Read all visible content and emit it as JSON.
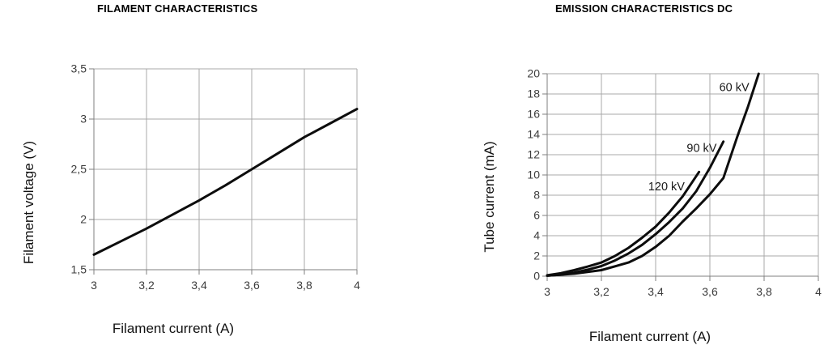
{
  "colors": {
    "background": "#ffffff",
    "curve": "#0d0d0d",
    "grid": "#a8a8a8",
    "axis": "#7f7f7f",
    "tick_text": "#3c3c3c",
    "title_text": "#000000"
  },
  "chart_data": [
    {
      "type": "line",
      "title": "FILAMENT CHARACTERISTICS",
      "xlabel": "Filament current (A)",
      "ylabel": "Filament voltage (V)",
      "xlim": [
        3,
        4
      ],
      "ylim": [
        1.5,
        3.5
      ],
      "grid": true,
      "legend": "none",
      "x_ticks": {
        "values": [
          3,
          3.2,
          3.4,
          3.6,
          3.8,
          4
        ],
        "labels": [
          "3",
          "3,2",
          "3,4",
          "3,6",
          "3,8",
          "4"
        ]
      },
      "y_ticks": {
        "values": [
          1.5,
          2,
          2.5,
          3,
          3.5
        ],
        "labels": [
          "1,5",
          "2",
          "2,5",
          "3",
          "3,5"
        ]
      },
      "series": [
        {
          "name": "filament-voltage",
          "label": null,
          "points": [
            [
              3,
              1.65
            ],
            [
              3.1,
              1.78
            ],
            [
              3.2,
              1.91
            ],
            [
              3.3,
              2.05
            ],
            [
              3.4,
              2.19
            ],
            [
              3.5,
              2.34
            ],
            [
              3.6,
              2.5
            ],
            [
              3.7,
              2.66
            ],
            [
              3.8,
              2.82
            ],
            [
              3.9,
              2.96
            ],
            [
              4,
              3.1
            ]
          ]
        }
      ]
    },
    {
      "type": "line",
      "title": "EMISSION CHARACTERISTICS DC",
      "xlabel": "Filament current (A)",
      "ylabel": "Tube current (mA)",
      "xlim": [
        3,
        4
      ],
      "ylim": [
        0,
        20
      ],
      "grid": true,
      "legend": "inline-annotations",
      "x_ticks": {
        "values": [
          3,
          3.2,
          3.4,
          3.6,
          3.8,
          4
        ],
        "labels": [
          "3",
          "3,2",
          "3,4",
          "3,6",
          "3,8",
          "4"
        ]
      },
      "y_ticks": {
        "values": [
          0,
          2,
          4,
          6,
          8,
          10,
          12,
          14,
          16,
          18,
          20
        ],
        "labels": [
          "0",
          "2",
          "4",
          "6",
          "8",
          "10",
          "12",
          "14",
          "16",
          "18",
          "20"
        ]
      },
      "series": [
        {
          "name": "120-kv",
          "label": "120 kV",
          "label_at": [
            3.44,
            8.9
          ],
          "points": [
            [
              3,
              0.1
            ],
            [
              3.05,
              0.3
            ],
            [
              3.1,
              0.6
            ],
            [
              3.15,
              0.95
            ],
            [
              3.2,
              1.35
            ],
            [
              3.25,
              2.0
            ],
            [
              3.3,
              2.8
            ],
            [
              3.35,
              3.8
            ],
            [
              3.4,
              4.9
            ],
            [
              3.45,
              6.3
            ],
            [
              3.5,
              7.9
            ],
            [
              3.56,
              10.3
            ]
          ]
        },
        {
          "name": "90-kv",
          "label": "90 kV",
          "label_at": [
            3.57,
            12.7
          ],
          "points": [
            [
              3,
              0.05
            ],
            [
              3.05,
              0.15
            ],
            [
              3.1,
              0.35
            ],
            [
              3.15,
              0.65
            ],
            [
              3.2,
              1.0
            ],
            [
              3.25,
              1.55
            ],
            [
              3.3,
              2.25
            ],
            [
              3.35,
              3.1
            ],
            [
              3.4,
              4.15
            ],
            [
              3.45,
              5.35
            ],
            [
              3.5,
              6.7
            ],
            [
              3.55,
              8.4
            ],
            [
              3.6,
              10.7
            ],
            [
              3.65,
              13.3
            ]
          ]
        },
        {
          "name": "60-kv",
          "label": "60 kV",
          "label_at": [
            3.69,
            18.7
          ],
          "points": [
            [
              3,
              0.05
            ],
            [
              3.1,
              0.25
            ],
            [
              3.2,
              0.6
            ],
            [
              3.3,
              1.35
            ],
            [
              3.35,
              2.0
            ],
            [
              3.4,
              2.9
            ],
            [
              3.45,
              4.0
            ],
            [
              3.5,
              5.4
            ],
            [
              3.55,
              6.7
            ],
            [
              3.6,
              8.1
            ],
            [
              3.65,
              9.7
            ],
            [
              3.7,
              13.7
            ],
            [
              3.74,
              16.7
            ],
            [
              3.78,
              20
            ]
          ]
        }
      ]
    }
  ]
}
